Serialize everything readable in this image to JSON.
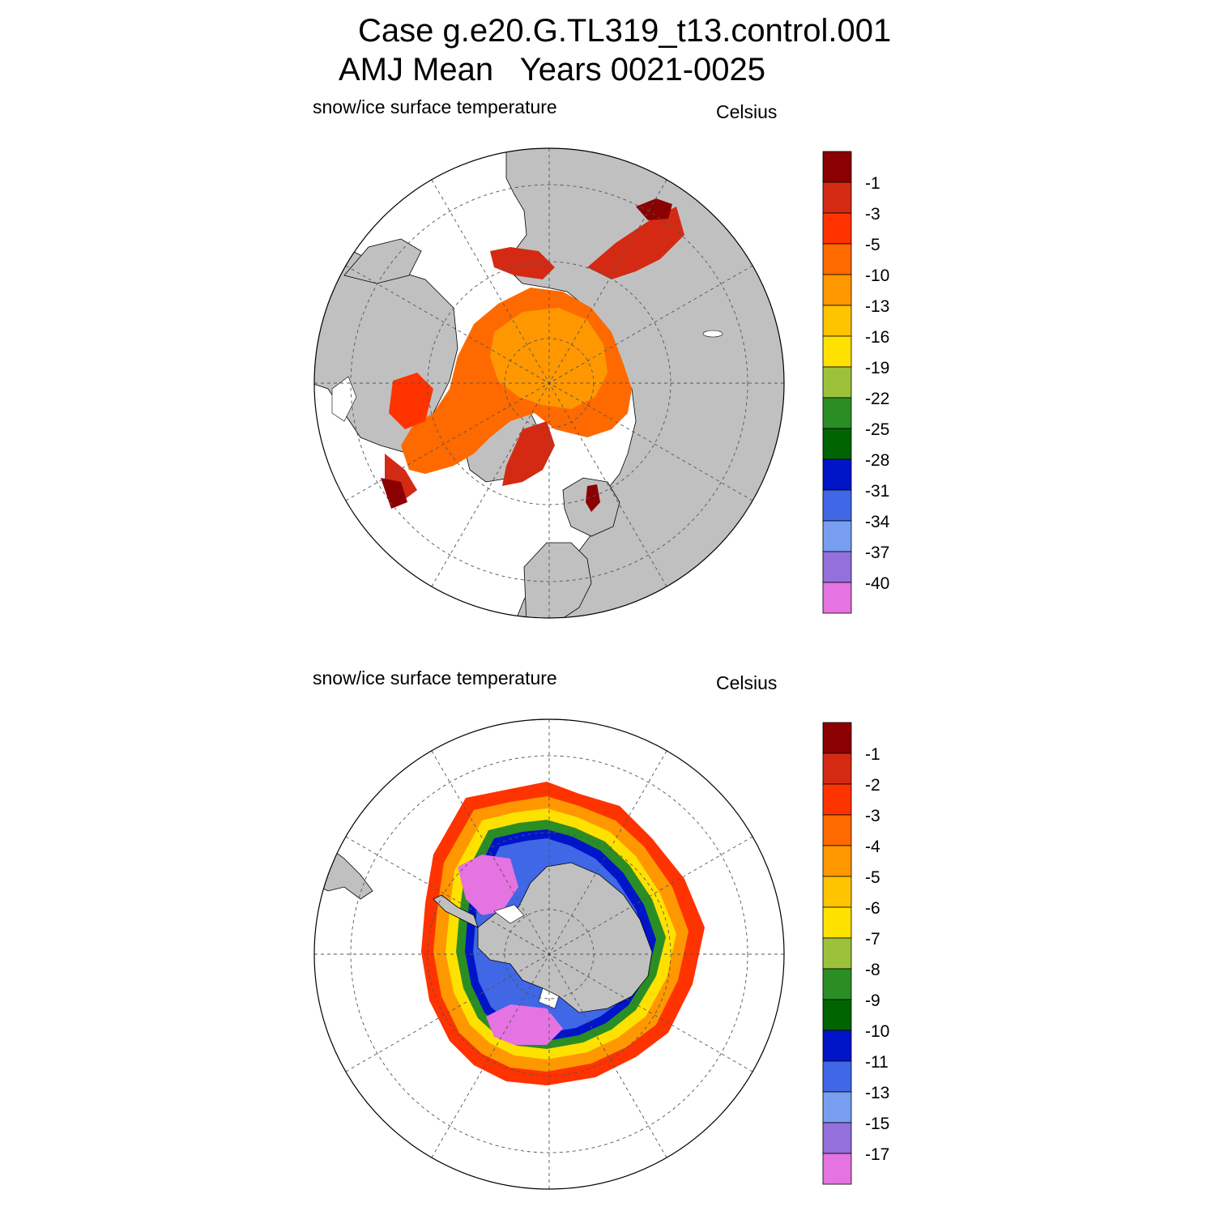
{
  "figure": {
    "title_line1": "Case g.e20.G.TL319_t13.control.001",
    "title_line2": "AMJ Mean   Years 0021-0025"
  },
  "panels": [
    {
      "id": "north",
      "variable_label": "snow/ice surface temperature",
      "units_label": "Celsius",
      "colorbar": {
        "labels": [
          "-1",
          "-3",
          "-5",
          "-10",
          "-13",
          "-16",
          "-19",
          "-22",
          "-25",
          "-28",
          "-31",
          "-34",
          "-37",
          "-40"
        ],
        "colors": [
          "#8b0000",
          "#d42a14",
          "#ff3300",
          "#ff6a00",
          "#ff9800",
          "#ffc400",
          "#ffe100",
          "#9cc23c",
          "#2a8e24",
          "#006400",
          "#0014c8",
          "#3f67e6",
          "#779ef0",
          "#9370db",
          "#e573e1"
        ]
      }
    },
    {
      "id": "south",
      "variable_label": "snow/ice surface temperature",
      "units_label": "Celsius",
      "colorbar": {
        "labels": [
          "-1",
          "-2",
          "-3",
          "-4",
          "-5",
          "-6",
          "-7",
          "-8",
          "-9",
          "-10",
          "-11",
          "-13",
          "-15",
          "-17"
        ],
        "colors": [
          "#8b0000",
          "#d42a14",
          "#ff3300",
          "#ff6a00",
          "#ff9800",
          "#ffc400",
          "#ffe100",
          "#9cc23c",
          "#2a8e24",
          "#006400",
          "#0014c8",
          "#3f67e6",
          "#779ef0",
          "#9370db",
          "#e573e1"
        ]
      }
    }
  ],
  "colors": {
    "land": "#c0c0c0",
    "ocean": "#ffffff",
    "grid": "#555555"
  }
}
